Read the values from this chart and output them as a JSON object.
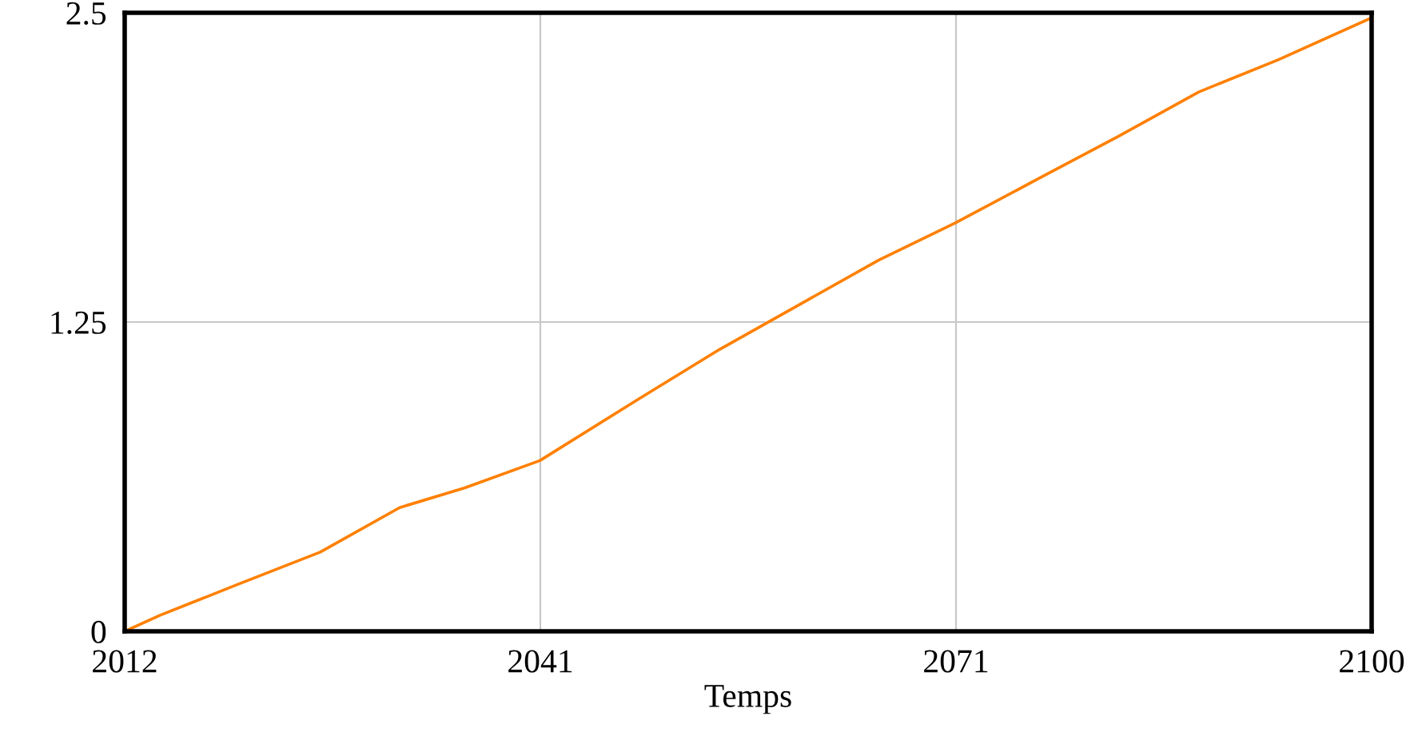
{
  "chart_data": {
    "type": "line",
    "xlabel": "Temps",
    "x": [
      2012,
      2014.5,
      2020,
      2025.8,
      2031.4,
      2036,
      2041.3,
      2048.3,
      2054,
      2059.6,
      2065.2,
      2070.6,
      2076.5,
      2082.1,
      2087.8,
      2093.4,
      2100
    ],
    "series": [
      {
        "color": "#ff8000",
        "values": [
          0,
          0.065,
          0.19,
          0.32,
          0.5,
          0.58,
          0.69,
          0.94,
          1.14,
          1.32,
          1.5,
          1.65,
          1.83,
          2.0,
          2.18,
          2.31,
          2.48
        ]
      }
    ],
    "xlim": [
      2012,
      2100
    ],
    "xticks": [
      2012,
      {
        "value": 2041.333,
        "label": "2041"
      },
      {
        "value": 2070.667,
        "label": "2071"
      },
      2100
    ],
    "ylim": [
      0,
      2.5
    ],
    "yticks": [
      0,
      1.25,
      2.5
    ],
    "grid": true,
    "legend": false,
    "marker": "none",
    "line_style": "solid"
  }
}
